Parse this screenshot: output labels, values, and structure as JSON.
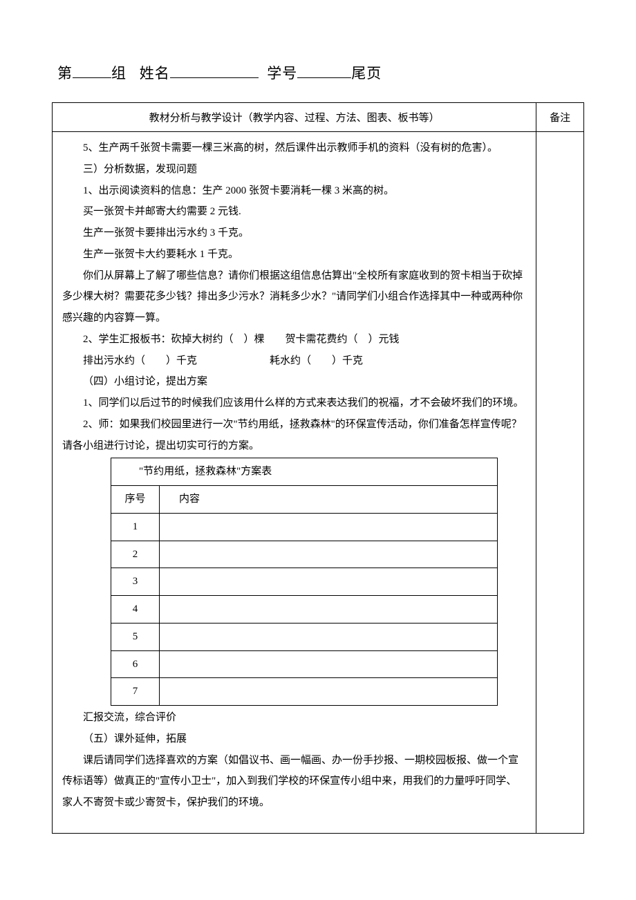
{
  "header": {
    "prefix": "第",
    "blank1_width": 56,
    "group": "组",
    "name_label": "姓名",
    "blank2_width": 128,
    "id_label": "学号",
    "blank3_width": 78,
    "suffix": "尾页"
  },
  "table": {
    "header_main": "教材分析与教学设计（教学内容、过程、方法、图表、板书等）",
    "header_note": "备注",
    "paragraphs_before": [
      "5、生产两千张贺卡需要一棵三米高的树，然后课件出示教师手机的资料（没有树的危害）。",
      "三）分析数据，发现问题",
      "1、出示阅读资料的信息：生产 2000 张贺卡要消耗一棵 3 米高的树。",
      "买一张贺卡并邮寄大约需要 2 元钱.",
      "生产一张贺卡要排出污水约 3 千克。",
      "生产一张贺卡大约要耗水 1 千克。",
      "你们从屏幕上了解了哪些信息？请你们根据这组信息估算出\"全校所有家庭收到的贺卡相当于砍掉多少棵大树？需要花多少钱？排出多少污水？消耗多少水？\"请同学们小组合作选择其中一种或两种你感兴趣的内容算一算。",
      "2、学生汇报板书：砍掉大树约（　）棵　　贺卡需花费约（　）元钱",
      "排出污水约（　　）千克　　　　　　　耗水约（　　）千克",
      "（四）小组讨论，提出方案",
      "1、同学们以后过节的时候我们应该用什么样的方式来表达我们的祝福，才不会破坏我们的环境。",
      "2、师：如果我们校园里进行一次\"节约用纸，拯救森林\"的环保宣传活动，你们准备怎样宣传呢？请各小组进行讨论，提出切实可行的方案。"
    ],
    "inner_table": {
      "title": "\"节约用纸，拯救森林\"方案表",
      "col_num": "序号",
      "col_content": "内容",
      "rows": [
        "1",
        "2",
        "3",
        "4",
        "5",
        "6",
        "7"
      ]
    },
    "paragraphs_after": [
      "汇报交流，综合评价",
      "（五）课外延伸，拓展",
      "课后请同学们选择喜欢的方案（如倡议书、画一幅画、办一份手抄报、一期校园板报、做一个宣传标语等）做真正的\"宣传小卫士\"，加入到我们学校的环保宣传小组中来，用我们的力量呼吁同学、家人不寄贺卡或少寄贺卡，保护我们的环境。"
    ]
  }
}
